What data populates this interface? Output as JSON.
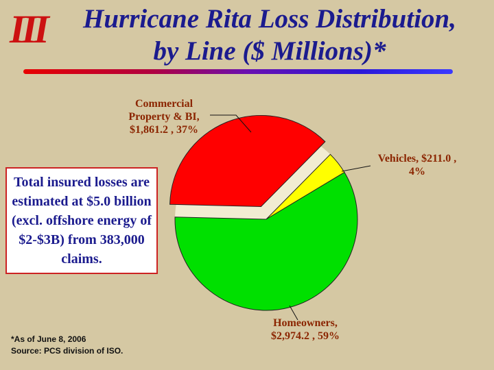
{
  "slide": {
    "logo_text": "III",
    "title_line1": "Hurricane Rita Loss Distribution,",
    "title_line2": "by Line ($ Millions)*"
  },
  "info_box": {
    "text": "Total insured losses are estimated at $5.0 billion (excl. offshore energy of $2-$3B) from 383,000 claims."
  },
  "footnote": {
    "line1": "*As of June 8, 2006",
    "line2": "Source: PCS division of ISO."
  },
  "chart_data": {
    "type": "pie",
    "title": "Hurricane Rita Loss Distribution, by Line ($ Millions)",
    "units": "$ Millions",
    "start_angle_deg": -88.6,
    "label_color": "#8b2500",
    "gap_fill": "#f2ecd2",
    "slices": [
      {
        "name": "Commercial Property & BI",
        "value": 1861.2,
        "percent": 37,
        "color": "#ff0000",
        "exploded": true,
        "label_lines": [
          "Commercial",
          "Property & BI,",
          "$1,861.2 , 37%"
        ]
      },
      {
        "name": "Vehicles",
        "value": 211.0,
        "percent": 4,
        "color": "#ffff00",
        "exploded": false,
        "label_lines": [
          "Vehicles, $211.0 ,",
          "4%"
        ]
      },
      {
        "name": "Homeowners",
        "value": 2974.2,
        "percent": 59,
        "color": "#00e000",
        "exploded": false,
        "label_lines": [
          "Homeowners,",
          "$2,974.2 , 59%"
        ]
      }
    ]
  },
  "colors": {
    "background": "#d5c8a3",
    "title_text": "#1b1b8e",
    "logo_red": "#cc1111",
    "info_box_border": "#cc2222",
    "info_box_text": "#1b1b8e"
  }
}
